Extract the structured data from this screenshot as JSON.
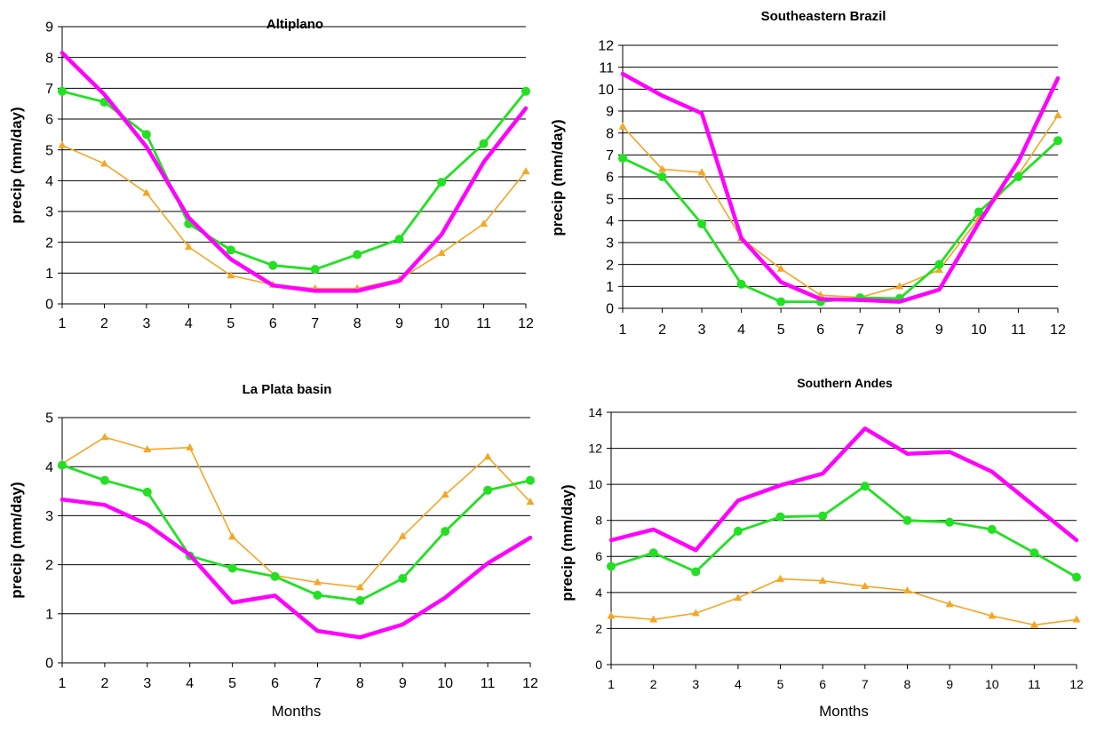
{
  "colors": {
    "magenta": "#ff00ff",
    "green": "#22e022",
    "orange": "#f5a623"
  },
  "chart_data": [
    {
      "type": "line",
      "title": "Altiplano",
      "xlabel": "",
      "ylabel": "precip (mm/day)",
      "ylim": [
        0,
        9
      ],
      "yticks": [
        "0",
        "1",
        "2",
        "3",
        "4",
        "5",
        "6",
        "7",
        "8",
        "9"
      ],
      "categories": [
        "1",
        "2",
        "3",
        "4",
        "5",
        "6",
        "7",
        "8",
        "9",
        "10",
        "11",
        "12"
      ],
      "grid": true,
      "series": [
        {
          "color": "magenta",
          "marker": "none",
          "values": [
            8.15,
            6.8,
            5.1,
            2.8,
            1.45,
            0.6,
            0.42,
            0.42,
            0.75,
            2.25,
            4.6,
            6.35
          ]
        },
        {
          "color": "green",
          "marker": "circle",
          "values": [
            6.9,
            6.55,
            5.5,
            2.6,
            1.75,
            1.25,
            1.12,
            1.6,
            2.1,
            3.95,
            5.2,
            6.9
          ]
        },
        {
          "color": "orange",
          "marker": "triangle",
          "values": [
            5.15,
            4.55,
            3.6,
            1.85,
            0.92,
            0.62,
            0.5,
            0.5,
            0.8,
            1.65,
            2.6,
            4.3
          ]
        }
      ]
    },
    {
      "type": "line",
      "title": "Southeastern Brazil",
      "xlabel": "",
      "ylabel": "precip (mm/day)",
      "ylim": [
        0,
        12
      ],
      "yticks": [
        "0",
        "1",
        "2",
        "3",
        "4",
        "5",
        "6",
        "7",
        "8",
        "9",
        "10",
        "11",
        "12"
      ],
      "categories": [
        "1",
        "2",
        "3",
        "4",
        "5",
        "6",
        "7",
        "8",
        "9",
        "10",
        "11",
        "12"
      ],
      "grid": true,
      "series": [
        {
          "color": "magenta",
          "marker": "none",
          "values": [
            10.7,
            9.7,
            8.9,
            3.2,
            1.2,
            0.42,
            0.38,
            0.3,
            0.85,
            3.9,
            6.7,
            10.5
          ]
        },
        {
          "color": "green",
          "marker": "circle",
          "values": [
            6.85,
            6.0,
            3.85,
            1.1,
            0.3,
            0.3,
            0.48,
            0.45,
            2.0,
            4.4,
            6.0,
            7.65
          ]
        },
        {
          "color": "orange",
          "marker": "triangle",
          "values": [
            8.3,
            6.35,
            6.2,
            3.2,
            1.8,
            0.6,
            0.5,
            1.0,
            1.75,
            4.1,
            6.1,
            8.8
          ]
        }
      ]
    },
    {
      "type": "line",
      "title": "La Plata basin",
      "xlabel": "Months",
      "ylabel": "precip (mm/day)",
      "ylim": [
        0,
        5
      ],
      "yticks": [
        "0",
        "1",
        "2",
        "3",
        "4",
        "5"
      ],
      "categories": [
        "1",
        "2",
        "3",
        "4",
        "5",
        "6",
        "7",
        "8",
        "9",
        "10",
        "11",
        "12"
      ],
      "grid": true,
      "series": [
        {
          "color": "magenta",
          "marker": "none",
          "values": [
            3.33,
            3.22,
            2.82,
            2.2,
            1.23,
            1.37,
            0.65,
            0.52,
            0.78,
            1.33,
            2.03,
            2.55
          ]
        },
        {
          "color": "green",
          "marker": "circle",
          "values": [
            4.03,
            3.72,
            3.48,
            2.18,
            1.93,
            1.76,
            1.38,
            1.27,
            1.72,
            2.68,
            3.52,
            3.72
          ]
        },
        {
          "color": "orange",
          "marker": "triangle",
          "values": [
            4.06,
            4.6,
            4.35,
            4.39,
            2.57,
            1.78,
            1.64,
            1.54,
            2.58,
            3.43,
            4.2,
            3.28
          ]
        }
      ]
    },
    {
      "type": "line",
      "title": "Southern Andes",
      "xlabel": "Months",
      "ylabel": "precip (mm/day)",
      "ylim": [
        0,
        14
      ],
      "yticks": [
        "0",
        "2",
        "4",
        "6",
        "8",
        "10",
        "12",
        "14"
      ],
      "categories": [
        "1",
        "2",
        "3",
        "4",
        "5",
        "6",
        "7",
        "8",
        "9",
        "10",
        "11",
        "12"
      ],
      "grid": true,
      "series": [
        {
          "color": "magenta",
          "marker": "none",
          "values": [
            6.9,
            7.5,
            6.35,
            9.1,
            9.95,
            10.6,
            13.1,
            11.7,
            11.8,
            10.7,
            8.8,
            6.9
          ]
        },
        {
          "color": "green",
          "marker": "circle",
          "values": [
            5.45,
            6.2,
            5.15,
            7.4,
            8.2,
            8.25,
            9.9,
            8.0,
            7.9,
            7.5,
            6.2,
            4.85
          ]
        },
        {
          "color": "orange",
          "marker": "triangle",
          "values": [
            2.7,
            2.5,
            2.85,
            3.7,
            4.75,
            4.65,
            4.35,
            4.1,
            3.35,
            2.7,
            2.2,
            2.5
          ]
        }
      ]
    }
  ]
}
